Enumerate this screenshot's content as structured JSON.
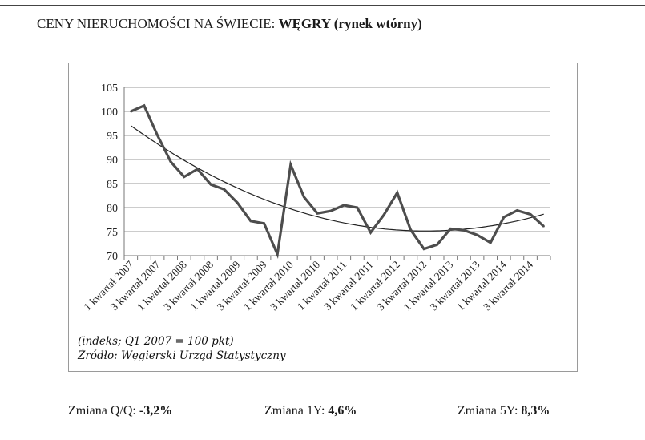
{
  "header": {
    "title_prefix": "CENY NIERUCHOMOŚCI NA ŚWIECIE: ",
    "title_country": "WĘGRY",
    "title_suffix": " (rynek wtórny)"
  },
  "notes": {
    "index_note": "(indeks; Q1 2007 = 100 pkt)",
    "source": "Źródło: Węgierski Urząd Statystyczny"
  },
  "footer": {
    "qq_label": "Zmiana Q/Q: ",
    "qq_value": "-3,2%",
    "y1_label": "Zmiana 1Y: ",
    "y1_value": "4,6%",
    "y5_label": "Zmiana 5Y: ",
    "y5_value": "8,3%"
  },
  "chart_data": {
    "type": "line",
    "ylim": [
      70,
      105
    ],
    "yticks": [
      70,
      75,
      80,
      85,
      90,
      95,
      100,
      105
    ],
    "grid": true,
    "x_tick_labels": [
      "1 kwartał 2007",
      "3 kwartał 2007",
      "1 kwartał 2008",
      "3 kwartał 2008",
      "1 kwartał 2009",
      "3 kwartał 2009",
      "1 kwartał 2010",
      "3 kwartał 2010",
      "1 kwartał 2011",
      "3 kwartał 2011",
      "1 kwartał 2012",
      "3 kwartał 2012",
      "1 kwartał 2013",
      "3 kwartał 2013",
      "1 kwartał 2014",
      "3 kwartał 2014"
    ],
    "series": [
      {
        "values": [
          100,
          101.2,
          95,
          89.5,
          86.4,
          88,
          84.8,
          83.8,
          81,
          77.2,
          76.7,
          70.3,
          88.9,
          82.2,
          78.8,
          79.3,
          80.5,
          80,
          74.8,
          78.5,
          83.1,
          75.4,
          71.4,
          72.3,
          75.6,
          75.3,
          74.3,
          72.7,
          78,
          79.4,
          78.6,
          76.1
        ],
        "color": "#4d4d4d"
      }
    ],
    "trendline": {
      "type": "polynomial",
      "color": "#222222"
    }
  }
}
